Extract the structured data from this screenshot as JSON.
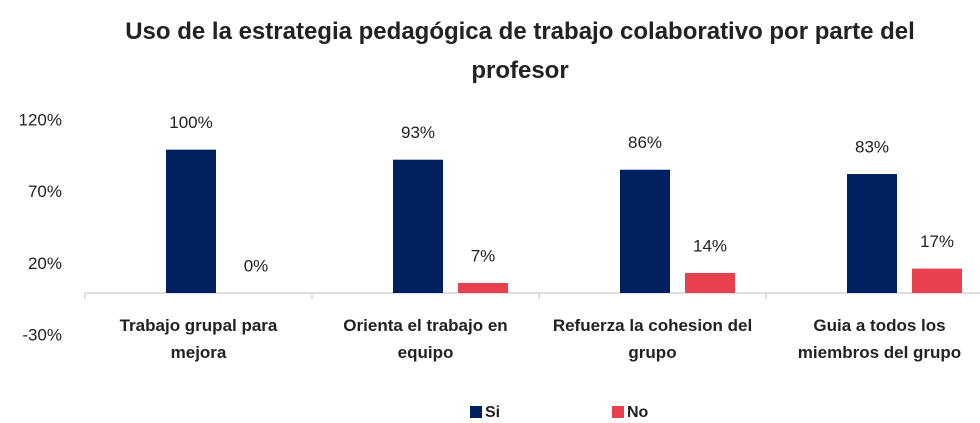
{
  "chart_data": {
    "type": "bar",
    "title": "Uso de la estrategia pedagógica de trabajo colaborativo por parte del profesor",
    "categories": [
      "Trabajo grupal para mejora",
      "Orienta el trabajo en equipo",
      "Refuerza la cohesion del grupo",
      "Guia a todos los miembros del grupo"
    ],
    "series": [
      {
        "name": "Si",
        "color": "#002060",
        "values": [
          100,
          93,
          86,
          83
        ],
        "value_labels": [
          "100%",
          "93%",
          "86%",
          "83%"
        ]
      },
      {
        "name": "No",
        "color": "#e8404f",
        "values": [
          0,
          7,
          14,
          17
        ],
        "value_labels": [
          "0%",
          "7%",
          "14%",
          "17%"
        ]
      }
    ],
    "ylim": [
      -30,
      120
    ],
    "yticks": [
      {
        "value": -30,
        "label": "-30%"
      },
      {
        "value": 20,
        "label": "20%"
      },
      {
        "value": 70,
        "label": "70%"
      },
      {
        "value": 120,
        "label": "120%"
      }
    ],
    "grid": false,
    "legend": "bottom"
  }
}
